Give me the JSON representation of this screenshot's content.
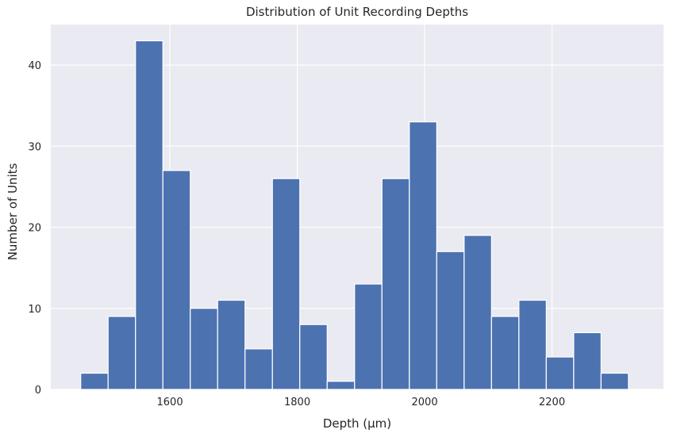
{
  "chart_data": {
    "type": "bar",
    "title": "Distribution of Unit Recording Depths",
    "xlabel": "Depth (µm)",
    "ylabel": "Number of Units",
    "bin_edges": [
      1460,
      1503,
      1546,
      1589,
      1632,
      1675,
      1718,
      1761,
      1804,
      1847,
      1890,
      1933,
      1976,
      2019,
      2062,
      2105,
      2148,
      2191,
      2234,
      2277,
      2320
    ],
    "values": [
      2,
      9,
      43,
      27,
      10,
      11,
      5,
      26,
      8,
      1,
      13,
      26,
      33,
      17,
      19,
      9,
      11,
      4,
      7,
      2
    ],
    "xlim": [
      1413,
      2375
    ],
    "ylim": [
      0,
      45
    ],
    "xticks": [
      1600,
      1800,
      2000,
      2200
    ],
    "yticks": [
      0,
      10,
      20,
      30,
      40
    ],
    "grid": true,
    "colors": {
      "bar": "#4c72b0",
      "background": "#eaeaf2",
      "grid": "#ffffff"
    }
  }
}
